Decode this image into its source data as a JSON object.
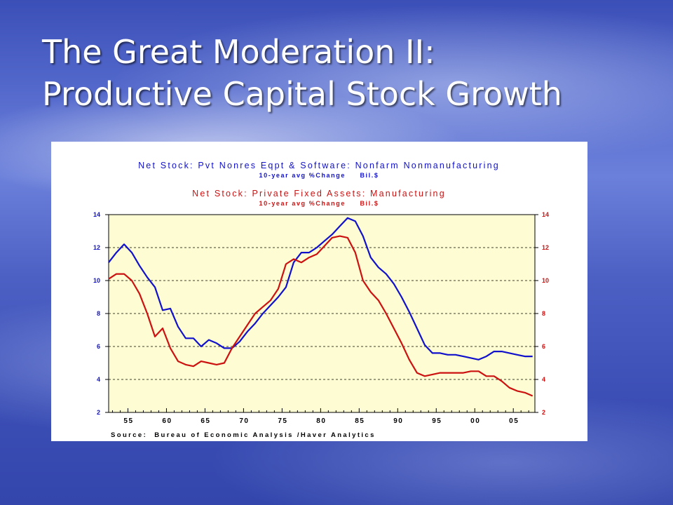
{
  "slide": {
    "title_line1": "The Great Moderation II:",
    "title_line2": "Productive Capital Stock Growth"
  },
  "chart_data": {
    "type": "line",
    "title": "Net Stock: Pvt Nonres Eqpt & Software: Nonfarm Nonmanufacturing",
    "subtitle": "10-year avg %Change     Bil.$",
    "title2": "Net Stock: Private Fixed Assets: Manufacturing",
    "subtitle2": "10-year avg %Change     Bil.$",
    "source": "Source:  Bureau of Economic Analysis /Haver Analytics",
    "xlim": [
      1952.5,
      2007.8
    ],
    "ylim": [
      2,
      14
    ],
    "y_ticks": [
      2,
      4,
      6,
      8,
      10,
      12,
      14
    ],
    "y_tick_labels": [
      "2",
      "4",
      "6",
      "8",
      "10",
      "12",
      "14"
    ],
    "x_ticks": [
      1955,
      1960,
      1965,
      1970,
      1975,
      1980,
      1985,
      1990,
      1995,
      2000,
      2005
    ],
    "x_tick_labels": [
      "55",
      "60",
      "65",
      "70",
      "75",
      "80",
      "85",
      "90",
      "95",
      "00",
      "05"
    ],
    "grid": "horizontal dashed",
    "plot_background": "#fdfcd2",
    "series": [
      {
        "name": "Net Stock: Pvt Nonres Eqpt & Software: Nonfarm Nonmanufacturing",
        "color": "#1111cc",
        "x": [
          1952.5,
          1953.5,
          1954.5,
          1955.5,
          1956.5,
          1957.5,
          1958.5,
          1959.5,
          1960.5,
          1961.5,
          1962.5,
          1963.5,
          1964.5,
          1965.5,
          1966.5,
          1967.5,
          1968.5,
          1969.5,
          1970.5,
          1971.5,
          1972.5,
          1973.5,
          1974.5,
          1975.5,
          1976.5,
          1977.5,
          1978.5,
          1979.5,
          1980.5,
          1981.5,
          1982.5,
          1983.5,
          1984.5,
          1985.5,
          1986.5,
          1987.5,
          1988.5,
          1989.5,
          1990.5,
          1991.5,
          1992.5,
          1993.5,
          1994.5,
          1995.5,
          1996.5,
          1997.5,
          1998.5,
          1999.5,
          2000.5,
          2001.5,
          2002.5,
          2003.5,
          2004.5,
          2005.5,
          2006.5,
          2007.5
        ],
        "values": [
          11.1,
          11.7,
          12.2,
          11.7,
          10.9,
          10.2,
          9.6,
          8.2,
          8.3,
          7.2,
          6.5,
          6.5,
          6.0,
          6.4,
          6.2,
          5.9,
          5.9,
          6.3,
          6.9,
          7.4,
          8.0,
          8.5,
          9.0,
          9.6,
          11.1,
          11.7,
          11.7,
          12.0,
          12.4,
          12.8,
          13.3,
          13.8,
          13.6,
          12.7,
          11.4,
          10.8,
          10.4,
          9.8,
          9.0,
          8.1,
          7.1,
          6.1,
          5.6,
          5.6,
          5.5,
          5.5,
          5.4,
          5.3,
          5.2,
          5.4,
          5.7,
          5.7,
          5.6,
          5.5,
          5.4,
          5.4
        ]
      },
      {
        "name": "Net Stock: Private Fixed Assets: Manufacturing",
        "color": "#cc1111",
        "x": [
          1952.5,
          1953.5,
          1954.5,
          1955.5,
          1956.5,
          1957.5,
          1958.5,
          1959.5,
          1960.5,
          1961.5,
          1962.5,
          1963.5,
          1964.5,
          1965.5,
          1966.5,
          1967.5,
          1968.5,
          1969.5,
          1970.5,
          1971.5,
          1972.5,
          1973.5,
          1974.5,
          1975.5,
          1976.5,
          1977.5,
          1978.5,
          1979.5,
          1980.5,
          1981.5,
          1982.5,
          1983.5,
          1984.5,
          1985.5,
          1986.5,
          1987.5,
          1988.5,
          1989.5,
          1990.5,
          1991.5,
          1992.5,
          1993.5,
          1994.5,
          1995.5,
          1996.5,
          1997.5,
          1998.5,
          1999.5,
          2000.5,
          2001.5,
          2002.5,
          2003.5,
          2004.5,
          2005.5,
          2006.5,
          2007.5
        ],
        "values": [
          10.1,
          10.4,
          10.4,
          10.0,
          9.2,
          8.0,
          6.6,
          7.1,
          5.9,
          5.1,
          4.9,
          4.8,
          5.1,
          5.0,
          4.9,
          5.0,
          5.9,
          6.6,
          7.3,
          8.0,
          8.4,
          8.8,
          9.5,
          11.0,
          11.3,
          11.1,
          11.4,
          11.6,
          12.1,
          12.6,
          12.7,
          12.6,
          11.7,
          10.0,
          9.3,
          8.8,
          8.0,
          7.1,
          6.2,
          5.2,
          4.4,
          4.2,
          4.3,
          4.4,
          4.4,
          4.4,
          4.4,
          4.5,
          4.5,
          4.2,
          4.2,
          3.9,
          3.5,
          3.3,
          3.2,
          3.0
        ]
      }
    ]
  }
}
